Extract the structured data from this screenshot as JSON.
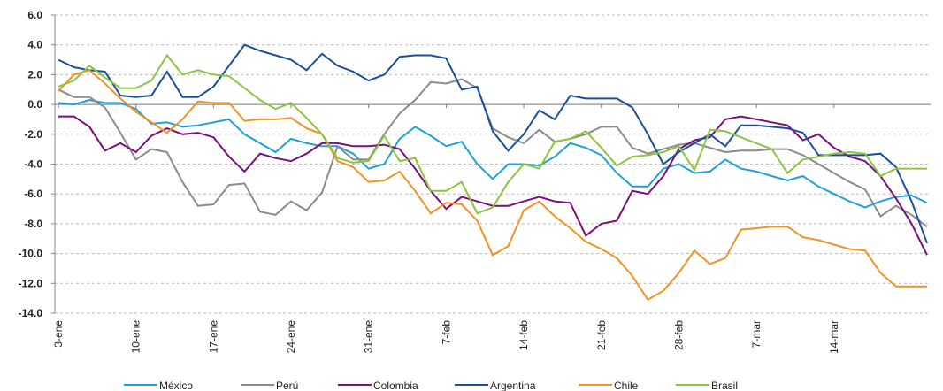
{
  "chart_data": {
    "type": "line",
    "categories": [
      "3-ene",
      null,
      null,
      null,
      null,
      "10-ene",
      null,
      null,
      null,
      null,
      "17-ene",
      null,
      null,
      null,
      null,
      "24-ene",
      null,
      null,
      null,
      null,
      "31-ene",
      null,
      null,
      null,
      null,
      "7-feb",
      null,
      null,
      null,
      null,
      "14-feb",
      null,
      null,
      null,
      null,
      "21-feb",
      null,
      null,
      null,
      null,
      "28-feb",
      null,
      null,
      null,
      null,
      "7-mar",
      null,
      null,
      null,
      null,
      "14-mar",
      null,
      null,
      null,
      null,
      null,
      null
    ],
    "series": [
      {
        "name": "México",
        "color": "#1ea0dc",
        "values": [
          0.1,
          0.0,
          0.3,
          0.1,
          0.1,
          -0.3,
          -1.3,
          -1.2,
          -1.5,
          -1.4,
          -1.2,
          -1.0,
          -2.0,
          -2.6,
          -3.2,
          -2.3,
          -2.6,
          -2.8,
          -2.8,
          -3.3,
          -4.3,
          -4.0,
          -2.3,
          -1.5,
          -2.1,
          -2.8,
          -2.5,
          -4.0,
          -5.0,
          -4.0,
          -4.0,
          -4.1,
          -3.5,
          -2.6,
          -2.9,
          -3.4,
          -4.6,
          -5.5,
          -5.5,
          -4.3,
          -4.0,
          -4.6,
          -4.5,
          -3.7,
          -4.3,
          -4.5,
          -4.8,
          -5.1,
          -4.8,
          -5.5,
          -6.0,
          -6.5,
          -6.9,
          -6.5,
          -6.2,
          -6.1,
          -6.6
        ]
      },
      {
        "name": "Perú",
        "color": "#8c8c8c",
        "values": [
          1.0,
          0.5,
          0.5,
          -0.2,
          -1.9,
          -3.7,
          -3.0,
          -3.2,
          -5.2,
          -6.8,
          -6.7,
          -5.4,
          -5.3,
          -7.2,
          -7.4,
          -6.5,
          -7.1,
          -5.9,
          -2.8,
          -3.7,
          -3.7,
          -2.0,
          -0.6,
          0.3,
          1.5,
          1.4,
          1.7,
          1.1,
          -1.6,
          -2.2,
          -2.6,
          -1.7,
          -2.5,
          -2.3,
          -2.0,
          -1.5,
          -1.5,
          -2.9,
          -3.3,
          -3.0,
          -2.7,
          -2.6,
          -2.9,
          -3.2,
          -3.1,
          -3.1,
          -3.0,
          -3.0,
          -3.4,
          -4.0,
          -4.6,
          -5.2,
          -5.7,
          -7.5,
          -6.8,
          -7.4,
          -8.2
        ]
      },
      {
        "name": "Colombia",
        "color": "#7b0f7b",
        "values": [
          -0.8,
          -0.8,
          -1.5,
          -3.1,
          -2.6,
          -3.2,
          -2.1,
          -1.6,
          -2.0,
          -1.9,
          -2.2,
          -3.5,
          -4.5,
          -3.3,
          -3.6,
          -3.8,
          -3.3,
          -2.6,
          -2.6,
          -2.8,
          -2.8,
          -2.7,
          -3.0,
          -4.3,
          -5.8,
          -7.0,
          -6.2,
          -6.5,
          -6.8,
          -6.8,
          -6.5,
          -6.2,
          -6.5,
          -6.6,
          -8.8,
          -8.0,
          -7.8,
          -5.8,
          -6.0,
          -4.8,
          -3.0,
          -2.4,
          -2.2,
          -1.0,
          -0.8,
          -1.0,
          -1.2,
          -1.4,
          -2.4,
          -2.0,
          -2.9,
          -3.5,
          -3.8,
          -4.8,
          -6.3,
          -8.0,
          -10.1
        ]
      },
      {
        "name": "Argentina",
        "color": "#1a4f9c",
        "values": [
          3.0,
          2.5,
          2.3,
          2.2,
          0.6,
          0.5,
          0.6,
          2.2,
          0.5,
          0.5,
          1.2,
          2.6,
          4.0,
          3.6,
          3.3,
          3.0,
          2.3,
          3.4,
          2.6,
          2.2,
          1.6,
          2.0,
          3.2,
          3.3,
          3.3,
          3.1,
          1.0,
          1.2,
          -1.8,
          -3.1,
          -2.0,
          -0.4,
          -1.0,
          0.6,
          0.4,
          0.4,
          0.4,
          -0.2,
          -2.0,
          -4.0,
          -3.2,
          -2.6,
          -2.0,
          -2.8,
          -1.4,
          -1.4,
          -1.5,
          -1.6,
          -1.9,
          -3.4,
          -3.4,
          -3.4,
          -3.4,
          -3.3,
          -4.2,
          -6.5,
          -9.3
        ]
      },
      {
        "name": "Chile",
        "color": "#f39325",
        "values": [
          0.9,
          2.0,
          2.3,
          1.4,
          0.4,
          -0.5,
          -1.2,
          -1.9,
          -1.0,
          0.2,
          0.1,
          0.1,
          -1.1,
          -1.0,
          -1.0,
          -0.9,
          -1.6,
          -2.0,
          -3.8,
          -4.2,
          -5.2,
          -5.1,
          -4.5,
          -5.8,
          -7.3,
          -6.6,
          -6.7,
          -7.8,
          -10.1,
          -9.5,
          -7.1,
          -6.5,
          -7.5,
          -8.3,
          -9.2,
          -9.7,
          -10.3,
          -11.5,
          -13.1,
          -12.5,
          -11.3,
          -9.8,
          -10.7,
          -10.3,
          -8.4,
          -8.3,
          -8.2,
          -8.2,
          -8.9,
          -9.1,
          -9.4,
          -9.7,
          -9.8,
          -11.3,
          -12.2,
          -12.2,
          -12.2
        ]
      },
      {
        "name": "Brasil",
        "color": "#8cc63f",
        "values": [
          1.2,
          1.6,
          2.6,
          1.8,
          1.1,
          1.1,
          1.6,
          3.3,
          2.0,
          2.3,
          2.0,
          1.9,
          1.1,
          0.3,
          -0.3,
          0.1,
          -0.9,
          -2.0,
          -3.6,
          -3.9,
          -3.8,
          -2.1,
          -3.8,
          -3.6,
          -5.8,
          -5.8,
          -5.2,
          -7.3,
          -6.9,
          -5.2,
          -4.0,
          -4.3,
          -2.5,
          -2.3,
          -1.8,
          -2.9,
          -4.1,
          -3.5,
          -3.4,
          -3.2,
          -2.8,
          -4.4,
          -1.7,
          -1.8,
          -2.2,
          -2.6,
          -3.0,
          -4.6,
          -3.7,
          -3.5,
          -3.3,
          -3.2,
          -3.3,
          -4.8,
          -4.3,
          -4.3,
          -4.3
        ]
      }
    ],
    "ylim": [
      -14,
      6
    ],
    "yticks": [
      {
        "value": -14,
        "label": "-14.0"
      },
      {
        "value": -12,
        "label": "-12.0"
      },
      {
        "value": -10,
        "label": "-10.0"
      },
      {
        "value": -8,
        "label": "-8.0"
      },
      {
        "value": -6,
        "label": "-6.0"
      },
      {
        "value": -4,
        "label": "-4.0"
      },
      {
        "value": -2,
        "label": "-2.0"
      },
      {
        "value": 0,
        "label": "0.0"
      },
      {
        "value": 2,
        "label": "2.0"
      },
      {
        "value": 4,
        "label": "4.0"
      },
      {
        "value": 6,
        "label": "6.0"
      }
    ],
    "grid": true,
    "legend": "bottom"
  }
}
